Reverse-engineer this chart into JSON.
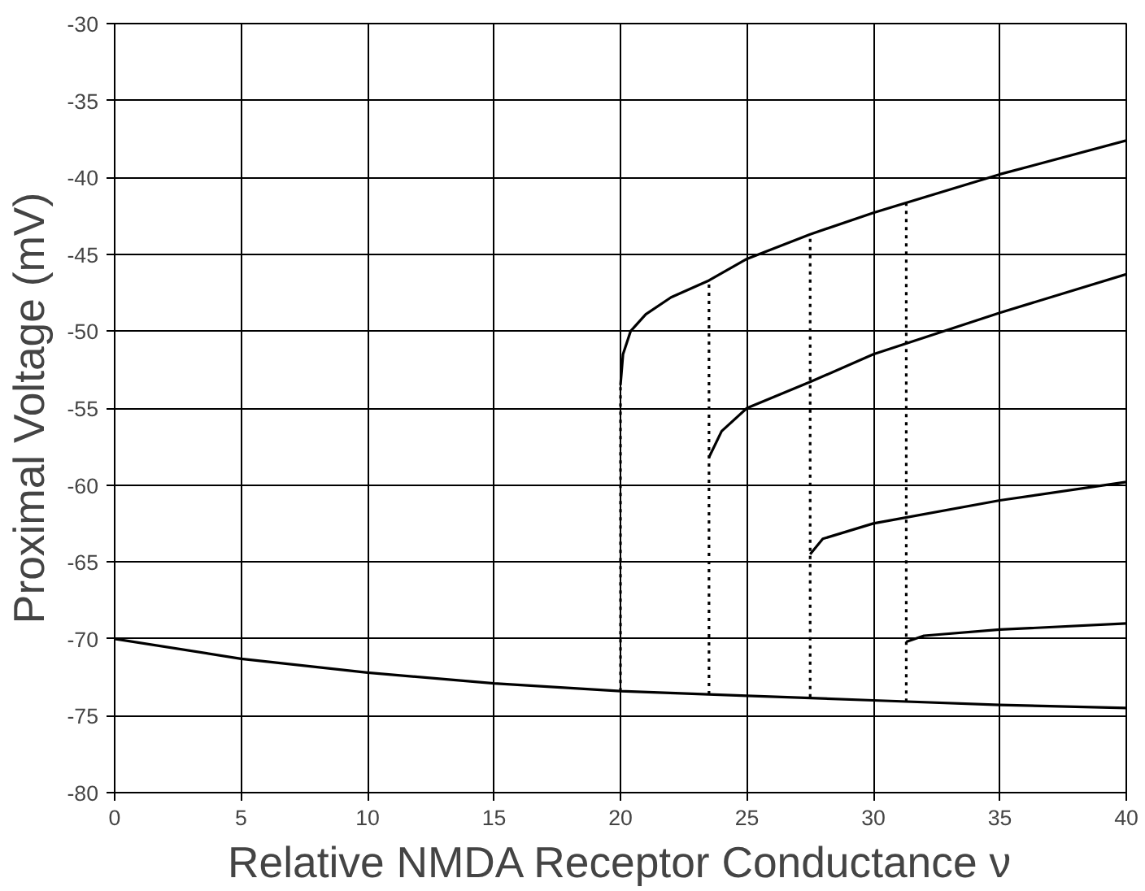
{
  "chart_data": {
    "type": "line",
    "xlabel": "Relative NMDA Receptor Conductance ν",
    "ylabel": "Proximal Voltage (mV)",
    "xlim": [
      0,
      40
    ],
    "ylim": [
      -80,
      -30
    ],
    "xticks": [
      0,
      5,
      10,
      15,
      20,
      25,
      30,
      35,
      40
    ],
    "yticks": [
      -80,
      -75,
      -70,
      -65,
      -60,
      -55,
      -50,
      -45,
      -40,
      -35,
      -30
    ],
    "grid": true,
    "line_style": "solid",
    "series": [
      {
        "color": "#000000",
        "x": [
          0,
          5,
          10,
          15,
          20,
          25,
          30,
          35,
          40
        ],
        "values": [
          -70,
          -71.3,
          -72.2,
          -72.9,
          -73.4,
          -73.7,
          -74.0,
          -74.3,
          -74.5
        ]
      },
      {
        "color": "#000000",
        "x": [
          20,
          20.1,
          20.4,
          21,
          22,
          23.5,
          25,
          27.5,
          30,
          35,
          40
        ],
        "values": [
          -53.5,
          -51.5,
          -50,
          -48.9,
          -47.8,
          -46.7,
          -45.3,
          -43.7,
          -42.3,
          -39.8,
          -37.6
        ]
      },
      {
        "color": "#000000",
        "x": [
          23.5,
          24,
          25,
          27.5,
          30,
          35,
          40
        ],
        "values": [
          -58.2,
          -56.5,
          -55,
          -53.3,
          -51.5,
          -48.8,
          -46.3
        ]
      },
      {
        "color": "#000000",
        "x": [
          27.5,
          28,
          30,
          35,
          40
        ],
        "values": [
          -64.5,
          -63.5,
          -62.5,
          -61,
          -59.8
        ]
      },
      {
        "color": "#000000",
        "x": [
          31.3,
          32,
          35,
          40
        ],
        "values": [
          -70.2,
          -69.8,
          -69.4,
          -69
        ]
      },
      {
        "color": "#000000",
        "line_style": "dotted",
        "x": [
          20,
          20
        ],
        "values": [
          -73.4,
          -53.5
        ]
      },
      {
        "color": "#000000",
        "line_style": "dotted",
        "x": [
          23.5,
          23.5
        ],
        "values": [
          -73.6,
          -46.8
        ]
      },
      {
        "color": "#000000",
        "line_style": "dotted",
        "x": [
          27.5,
          27.5
        ],
        "values": [
          -73.8,
          -43.7
        ]
      },
      {
        "color": "#000000",
        "line_style": "dotted",
        "x": [
          31.3,
          31.3
        ],
        "values": [
          -74.1,
          -41.4
        ]
      }
    ]
  }
}
